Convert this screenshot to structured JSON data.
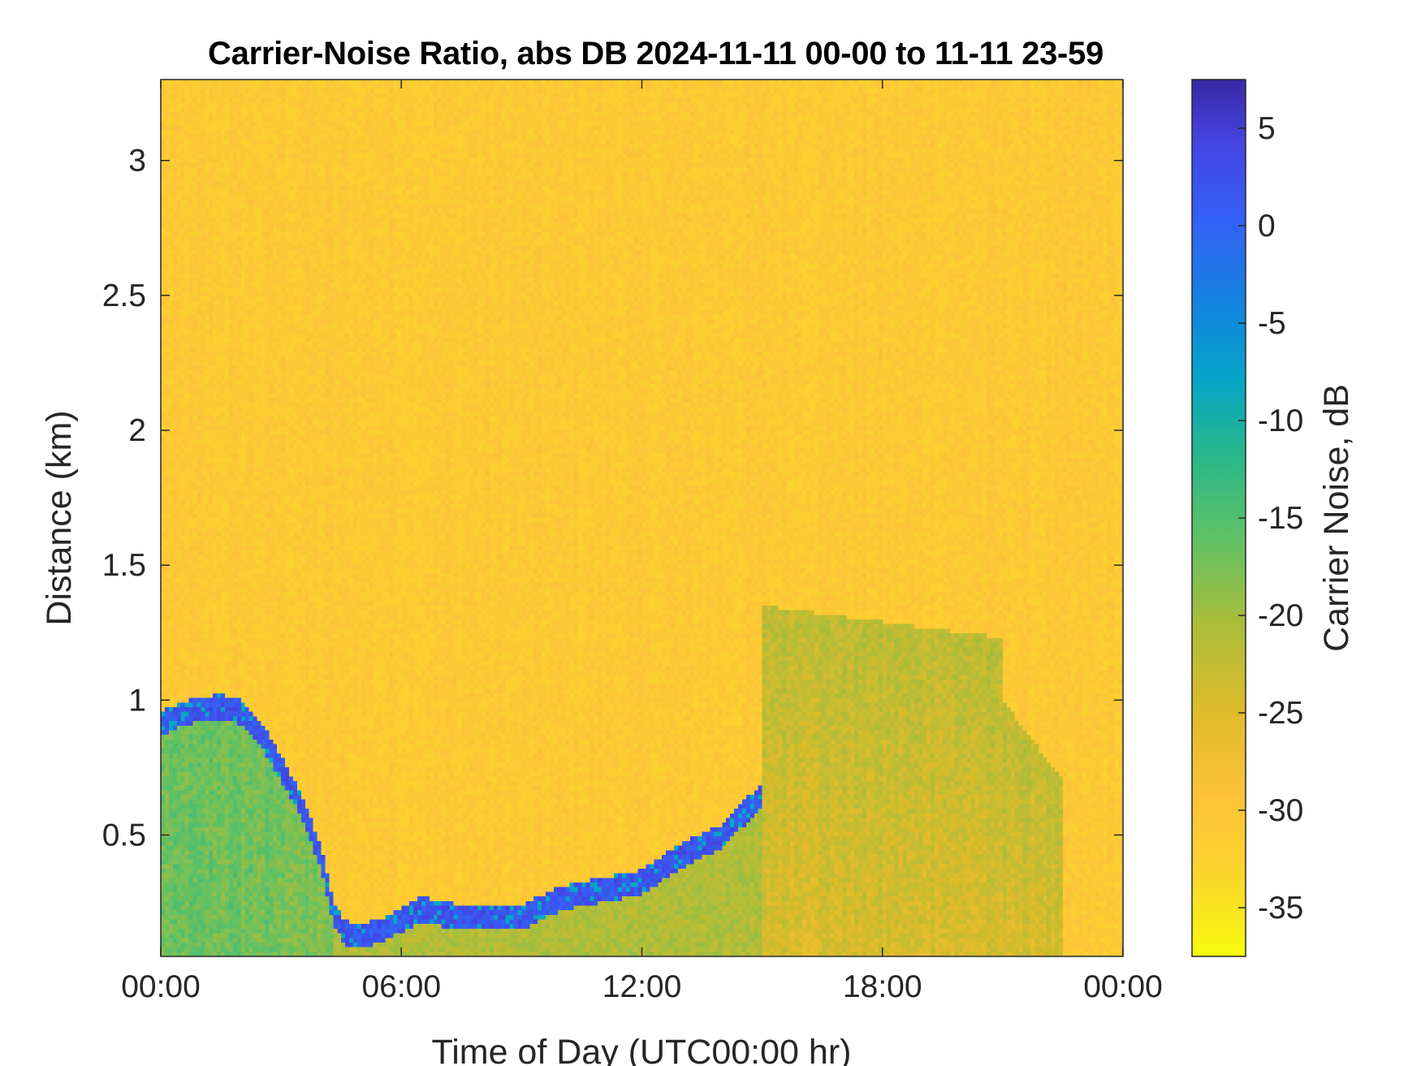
{
  "chart_data": {
    "type": "heatmap",
    "title": "Carrier-Noise Ratio, abs DB 2024-11-11 00-00 to 11-11 23-59",
    "xlabel": "Time of Day (UTC00:00 hr)",
    "ylabel": "Distance (km)",
    "colorbar_label": "Carrier Noise, dB",
    "x_ticks": [
      "00:00",
      "06:00",
      "12:00",
      "18:00",
      "00:00"
    ],
    "x_range_hours": [
      0,
      24
    ],
    "y_ticks": [
      {
        "value": 0.5,
        "label": "0.5"
      },
      {
        "value": 1,
        "label": "1"
      },
      {
        "value": 1.5,
        "label": "1.5"
      },
      {
        "value": 2,
        "label": "2"
      },
      {
        "value": 2.5,
        "label": "2.5"
      },
      {
        "value": 3,
        "label": "3"
      }
    ],
    "ylim": [
      0.05,
      3.3
    ],
    "colorbar_ticks": [
      {
        "value": 5,
        "label": "5"
      },
      {
        "value": 0,
        "label": "0"
      },
      {
        "value": -5,
        "label": "-5"
      },
      {
        "value": -10,
        "label": "-10"
      },
      {
        "value": -15,
        "label": "-15"
      },
      {
        "value": -20,
        "label": "-20"
      },
      {
        "value": -25,
        "label": "-25"
      },
      {
        "value": -30,
        "label": "-30"
      },
      {
        "value": -35,
        "label": "-35"
      }
    ],
    "clim": [
      -37.5,
      7.5
    ],
    "colormap": "parula",
    "colormap_reversed": true,
    "background_value_db": -31,
    "boundary_layer_top_km": [
      {
        "hour": 0.0,
        "km": 0.92
      },
      {
        "hour": 0.5,
        "km": 0.95
      },
      {
        "hour": 1.0,
        "km": 0.97
      },
      {
        "hour": 1.5,
        "km": 0.98
      },
      {
        "hour": 2.0,
        "km": 0.96
      },
      {
        "hour": 2.5,
        "km": 0.88
      },
      {
        "hour": 3.0,
        "km": 0.75
      },
      {
        "hour": 3.5,
        "km": 0.62
      },
      {
        "hour": 4.0,
        "km": 0.42
      },
      {
        "hour": 4.3,
        "km": 0.22
      },
      {
        "hour": 4.6,
        "km": 0.14
      },
      {
        "hour": 5.0,
        "km": 0.13
      },
      {
        "hour": 5.5,
        "km": 0.15
      },
      {
        "hour": 6.0,
        "km": 0.19
      },
      {
        "hour": 6.5,
        "km": 0.23
      },
      {
        "hour": 7.0,
        "km": 0.21
      },
      {
        "hour": 8.0,
        "km": 0.2
      },
      {
        "hour": 9.0,
        "km": 0.2
      },
      {
        "hour": 10.0,
        "km": 0.27
      },
      {
        "hour": 11.0,
        "km": 0.3
      },
      {
        "hour": 12.0,
        "km": 0.33
      },
      {
        "hour": 13.0,
        "km": 0.43
      },
      {
        "hour": 14.0,
        "km": 0.5
      },
      {
        "hour": 14.5,
        "km": 0.58
      },
      {
        "hour": 15.0,
        "km": 0.65
      }
    ]
  }
}
